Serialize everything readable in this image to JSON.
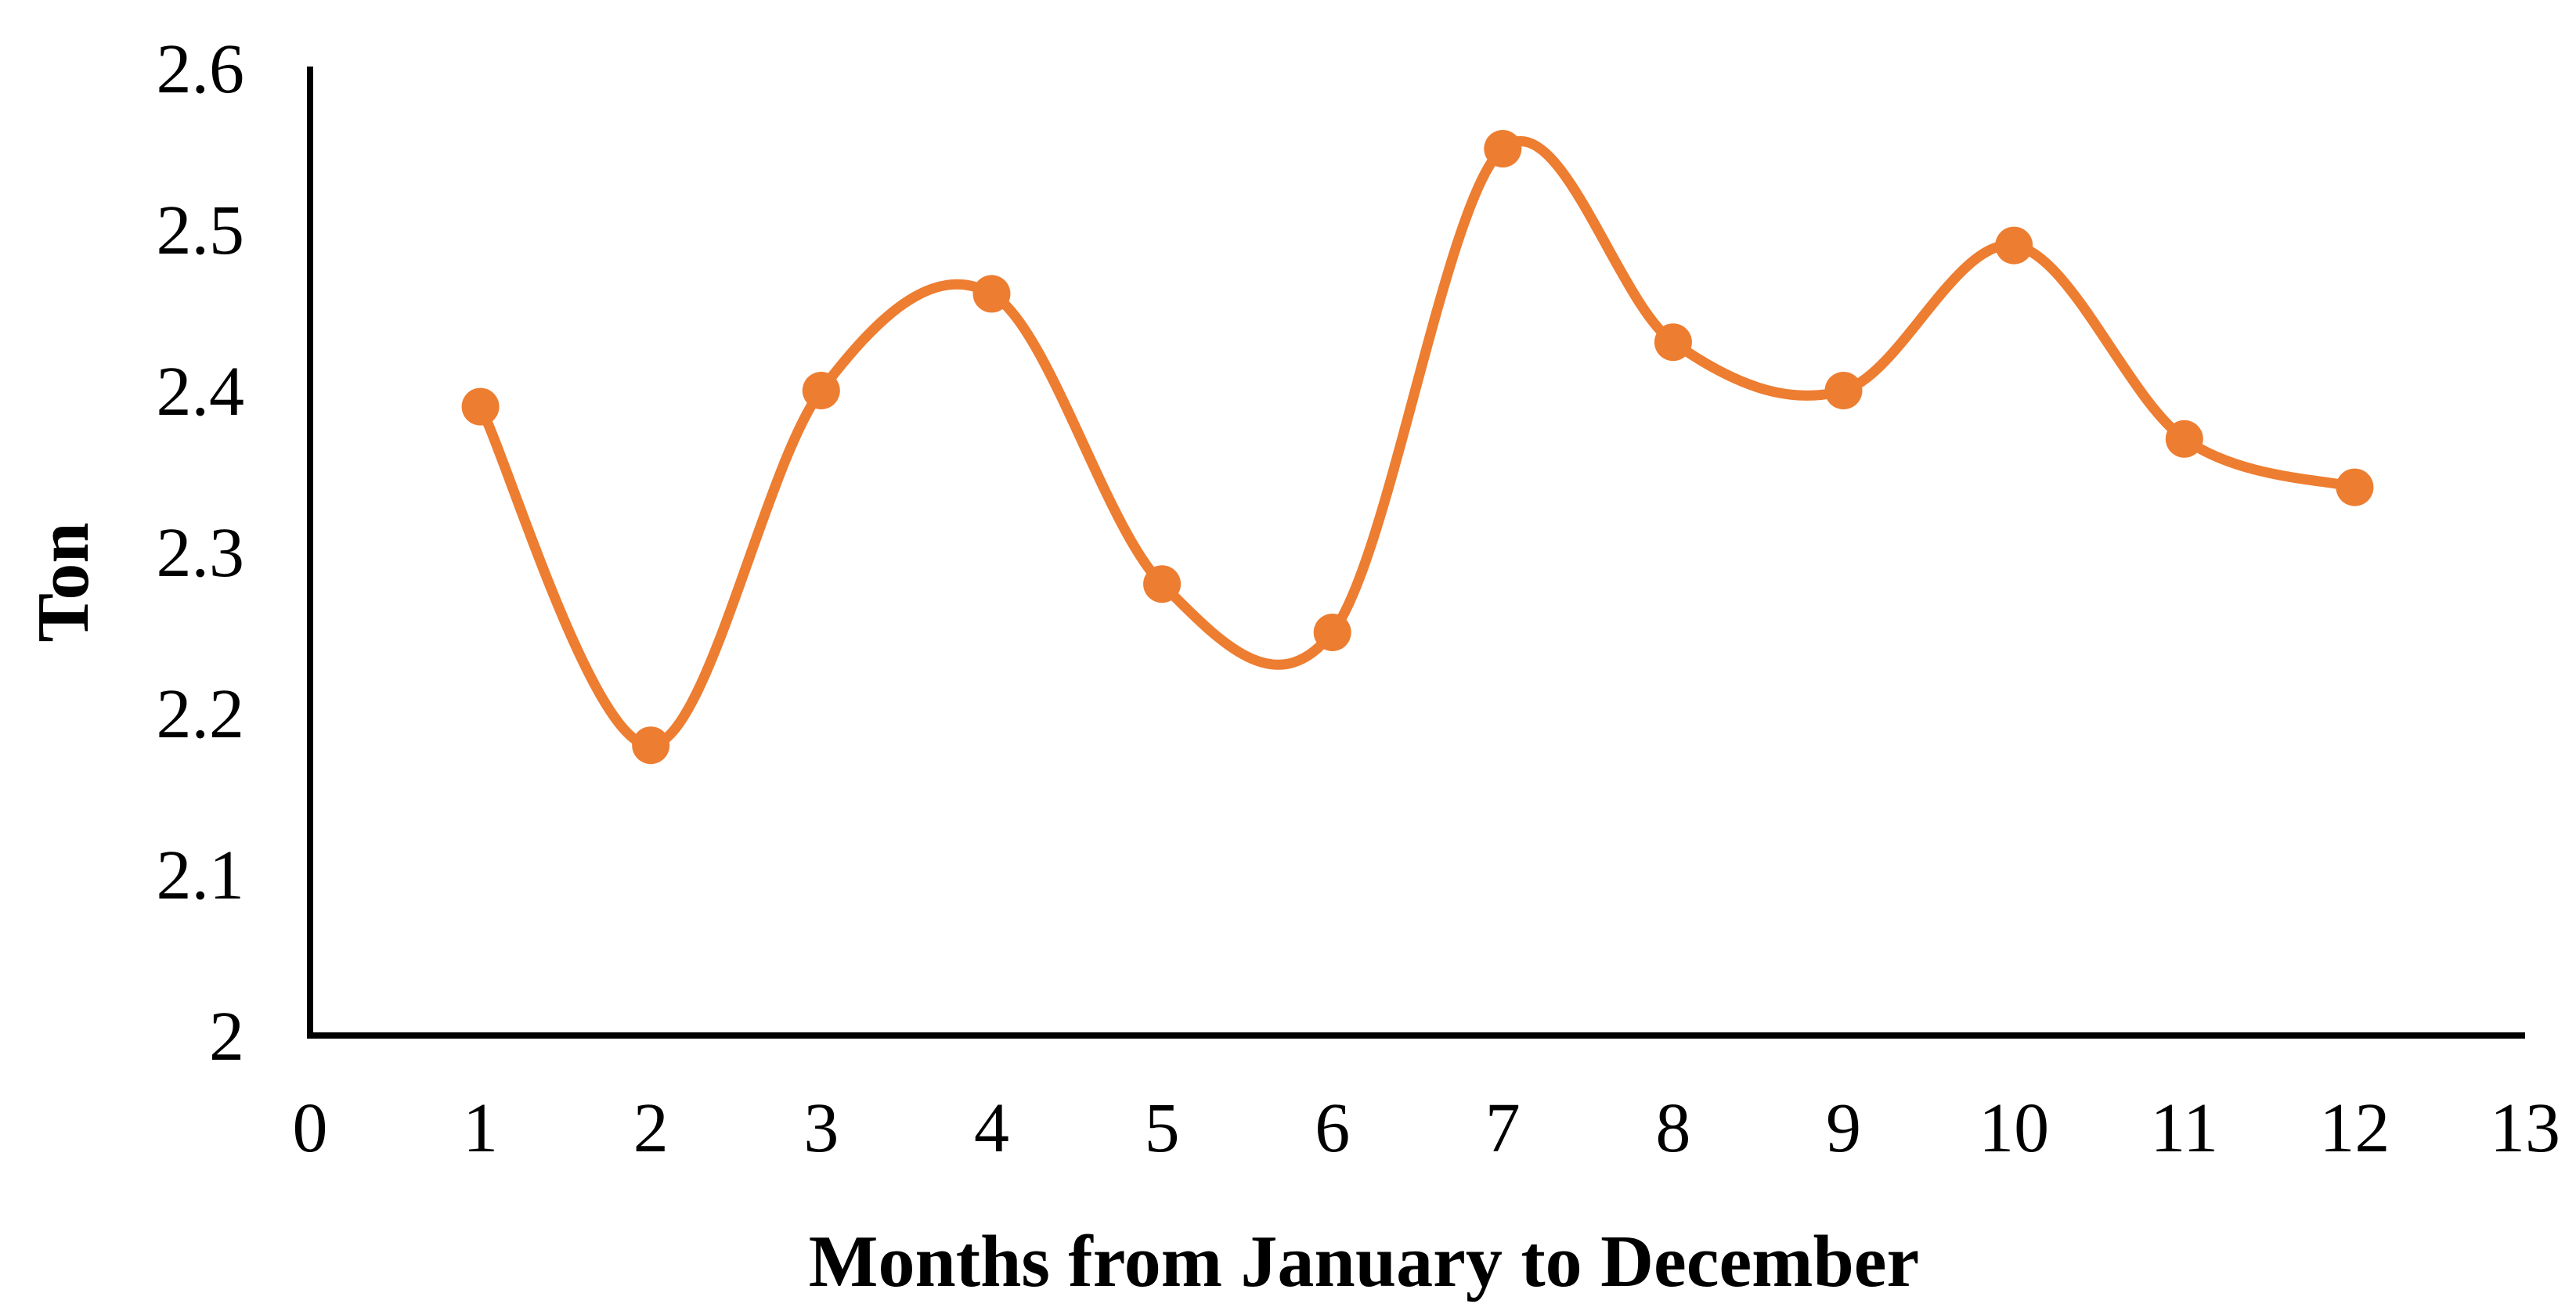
{
  "chart_data": {
    "type": "line",
    "title": "",
    "xlabel": "Months from January to December",
    "ylabel": "Ton",
    "x": [
      1,
      2,
      3,
      4,
      5,
      6,
      7,
      8,
      9,
      10,
      11,
      12
    ],
    "series": [
      {
        "name": "Ton",
        "values": [
          2.39,
          2.18,
          2.4,
          2.46,
          2.28,
          2.25,
          2.55,
          2.43,
          2.4,
          2.49,
          2.37,
          2.34
        ]
      }
    ],
    "xlim": [
      0,
      13
    ],
    "ylim": [
      2.0,
      2.6
    ],
    "x_tick_labels": [
      "0",
      "1",
      "2",
      "3",
      "4",
      "5",
      "6",
      "7",
      "8",
      "9",
      "10",
      "11",
      "12",
      "13"
    ],
    "x_tick_values": [
      0,
      1,
      2,
      3,
      4,
      5,
      6,
      7,
      8,
      9,
      10,
      11,
      12,
      13
    ],
    "y_tick_labels": [
      "2",
      "2.1",
      "2.2",
      "2.3",
      "2.4",
      "2.5",
      "2.6"
    ],
    "y_tick_values": [
      2.0,
      2.1,
      2.2,
      2.3,
      2.4,
      2.5,
      2.6
    ],
    "grid": false,
    "legend": false,
    "smooth": true,
    "marker": "circle",
    "line_color": "#ED7D31",
    "marker_color": "#ED7D31",
    "axis_color": "#000000"
  }
}
